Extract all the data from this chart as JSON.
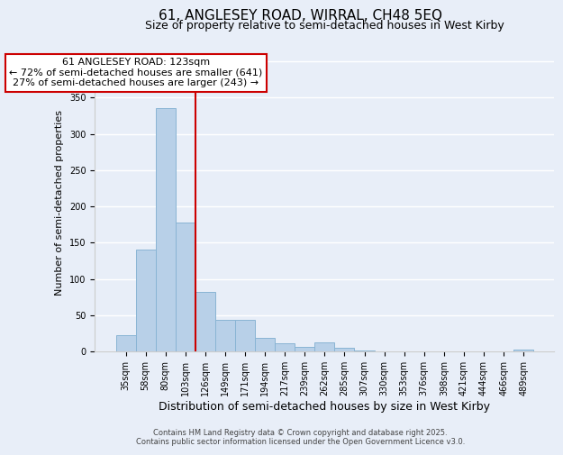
{
  "title": "61, ANGLESEY ROAD, WIRRAL, CH48 5EQ",
  "subtitle": "Size of property relative to semi-detached houses in West Kirby",
  "xlabel": "Distribution of semi-detached houses by size in West Kirby",
  "ylabel": "Number of semi-detached properties",
  "bin_labels": [
    "35sqm",
    "58sqm",
    "80sqm",
    "103sqm",
    "126sqm",
    "149sqm",
    "171sqm",
    "194sqm",
    "217sqm",
    "239sqm",
    "262sqm",
    "285sqm",
    "307sqm",
    "330sqm",
    "353sqm",
    "376sqm",
    "398sqm",
    "421sqm",
    "444sqm",
    "466sqm",
    "489sqm"
  ],
  "bar_values": [
    22,
    140,
    335,
    178,
    82,
    44,
    44,
    19,
    11,
    6,
    13,
    5,
    1,
    0,
    0,
    0,
    0,
    0,
    0,
    0,
    3
  ],
  "bar_color": "#b8d0e8",
  "bar_edge_color": "#89b4d4",
  "property_line_color": "#cc0000",
  "annotation_text": "61 ANGLESEY ROAD: 123sqm\n← 72% of semi-detached houses are smaller (641)\n27% of semi-detached houses are larger (243) →",
  "annotation_box_color": "#ffffff",
  "annotation_box_edge_color": "#cc0000",
  "ylim": [
    0,
    410
  ],
  "footer_line1": "Contains HM Land Registry data © Crown copyright and database right 2025.",
  "footer_line2": "Contains public sector information licensed under the Open Government Licence v3.0.",
  "background_color": "#e8eef8",
  "grid_color": "#ffffff",
  "title_fontsize": 11,
  "subtitle_fontsize": 9,
  "xlabel_fontsize": 9,
  "ylabel_fontsize": 8,
  "tick_fontsize": 7,
  "annotation_fontsize": 8,
  "footer_fontsize": 6
}
